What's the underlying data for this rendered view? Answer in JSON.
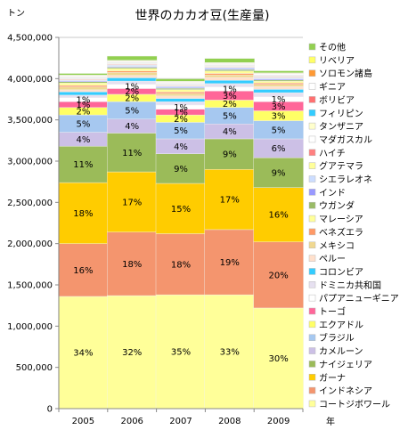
{
  "chart_data": {
    "type": "bar",
    "stacked": true,
    "title": "世界のカカオ豆(生産量)",
    "ylabel": "トン",
    "xlabel": "年",
    "ylim": [
      0,
      4500000
    ],
    "y_ticks": [
      0,
      500000,
      1000000,
      1500000,
      2000000,
      2500000,
      3000000,
      3500000,
      4000000,
      4500000
    ],
    "y_tick_labels": [
      "0",
      "500,000",
      "1,000,000",
      "1,500,000",
      "2,000,000",
      "2,500,000",
      "3,000,000",
      "3,500,000",
      "4,000,000",
      "4,500,000"
    ],
    "grid": true,
    "legend_position": "right",
    "categories": [
      "2005",
      "2006",
      "2007",
      "2008",
      "2009"
    ],
    "series": [
      {
        "name": "コートジボワール",
        "color": "#ffff99",
        "values": [
          1360000,
          1370000,
          1380000,
          1380000,
          1220000
        ],
        "labels": [
          "34%",
          "32%",
          "35%",
          "33%",
          "30%"
        ]
      },
      {
        "name": "インドネシア",
        "color": "#f4956e",
        "values": [
          640000,
          770000,
          740000,
          790000,
          800000
        ],
        "labels": [
          "16%",
          "18%",
          "18%",
          "19%",
          "20%"
        ]
      },
      {
        "name": "ガーナ",
        "color": "#ffcc00",
        "values": [
          740000,
          730000,
          610000,
          730000,
          660000
        ],
        "labels": [
          "18%",
          "17%",
          "15%",
          "17%",
          "16%"
        ]
      },
      {
        "name": "ナイジェリア",
        "color": "#9bbb59",
        "values": [
          440000,
          470000,
          360000,
          370000,
          360000
        ],
        "labels": [
          "11%",
          "11%",
          "9%",
          "9%",
          "9%"
        ]
      },
      {
        "name": "カメルーン",
        "color": "#ccc0e6",
        "values": [
          170000,
          170000,
          180000,
          180000,
          230000
        ],
        "labels": [
          "4%",
          "4%",
          "4%",
          "4%",
          "6%"
        ]
      },
      {
        "name": "ブラジル",
        "color": "#a6c8f0",
        "values": [
          210000,
          210000,
          200000,
          200000,
          220000
        ],
        "labels": [
          "5%",
          "5%",
          "5%",
          "5%",
          "5%"
        ]
      },
      {
        "name": "エクアドル",
        "color": "#ffff66",
        "values": [
          90000,
          90000,
          90000,
          90000,
          120000
        ],
        "labels": [
          "2%",
          "2%",
          "2%",
          "2%",
          "3%"
        ]
      },
      {
        "name": "トーゴ",
        "color": "#ff6699",
        "values": [
          70000,
          70000,
          70000,
          110000,
          110000
        ],
        "labels": [
          "1%",
          "2%",
          "1%",
          "3%",
          "3%"
        ]
      },
      {
        "name": "パプアニューギニア",
        "color": "#ffffff",
        "values": [
          50000,
          50000,
          50000,
          50000,
          60000
        ],
        "labels": [
          "1%",
          "1%",
          "1%",
          "1%",
          "1%"
        ]
      },
      {
        "name": "ドミニカ共和国",
        "color": "#e6e0f0",
        "values": [
          30000,
          40000,
          40000,
          40000,
          50000
        ],
        "labels": [
          "",
          "",
          "",
          "",
          ""
        ]
      },
      {
        "name": "コロンビア",
        "color": "#33ccff",
        "values": [
          40000,
          40000,
          40000,
          40000,
          40000
        ],
        "labels": [
          "",
          "",
          "",
          "",
          ""
        ]
      },
      {
        "name": "ペルー",
        "color": "#ffe0cc",
        "values": [
          25000,
          30000,
          30000,
          35000,
          35000
        ],
        "labels": [
          "",
          "",
          "",
          "",
          ""
        ]
      },
      {
        "name": "メキシコ",
        "color": "#f0d890",
        "values": [
          35000,
          35000,
          30000,
          30000,
          25000
        ],
        "labels": [
          "",
          "",
          "",
          "",
          ""
        ]
      },
      {
        "name": "ベネズエラ",
        "color": "#ff9966",
        "values": [
          18000,
          18000,
          18000,
          18000,
          18000
        ],
        "labels": [
          "",
          "",
          "",
          "",
          ""
        ]
      },
      {
        "name": "マレーシア",
        "color": "#ffff99",
        "values": [
          30000,
          30000,
          30000,
          30000,
          20000
        ],
        "labels": [
          "",
          "",
          "",
          "",
          ""
        ]
      },
      {
        "name": "ウガンダ",
        "color": "#99bb66",
        "values": [
          15000,
          15000,
          15000,
          15000,
          15000
        ],
        "labels": [
          "",
          "",
          "",
          "",
          ""
        ]
      },
      {
        "name": "インド",
        "color": "#9999ff",
        "values": [
          10000,
          10000,
          10000,
          12000,
          12000
        ],
        "labels": [
          "",
          "",
          "",
          "",
          ""
        ]
      },
      {
        "name": "シエラレオネ",
        "color": "#ccddff",
        "values": [
          10000,
          15000,
          15000,
          15000,
          15000
        ],
        "labels": [
          "",
          "",
          "",
          "",
          ""
        ]
      },
      {
        "name": "グアテマラ",
        "color": "#ffff99",
        "values": [
          5000,
          5000,
          5000,
          5000,
          5000
        ],
        "labels": [
          "",
          "",
          "",
          "",
          ""
        ]
      },
      {
        "name": "ハイチ",
        "color": "#ff8080",
        "values": [
          8000,
          8000,
          8000,
          8000,
          8000
        ],
        "labels": [
          "",
          "",
          "",
          "",
          ""
        ]
      },
      {
        "name": "マダガスカル",
        "color": "#ffffff",
        "values": [
          6000,
          6000,
          6000,
          6000,
          6000
        ],
        "labels": [
          "",
          "",
          "",
          "",
          ""
        ]
      },
      {
        "name": "タンザニア",
        "color": "#ffffcc",
        "values": [
          6000,
          6000,
          6000,
          6000,
          6000
        ],
        "labels": [
          "",
          "",
          "",
          "",
          ""
        ]
      },
      {
        "name": "フィリピン",
        "color": "#33ccff",
        "values": [
          5000,
          5000,
          5000,
          5000,
          5000
        ],
        "labels": [
          "",
          "",
          "",
          "",
          ""
        ]
      },
      {
        "name": "ボリビア",
        "color": "#ff7070",
        "values": [
          5000,
          5000,
          5000,
          5000,
          5000
        ],
        "labels": [
          "",
          "",
          "",
          "",
          ""
        ]
      },
      {
        "name": "ギニア",
        "color": "#ffffff",
        "values": [
          15000,
          15000,
          15000,
          15000,
          15000
        ],
        "labels": [
          "",
          "",
          "",
          "",
          ""
        ]
      },
      {
        "name": "ソロモン諸島",
        "color": "#ff9933",
        "values": [
          5000,
          5000,
          5000,
          5000,
          5000
        ],
        "labels": [
          "",
          "",
          "",
          "",
          ""
        ]
      },
      {
        "name": "リベリア",
        "color": "#ffff66",
        "values": [
          5000,
          5000,
          5000,
          5000,
          5000
        ],
        "labels": [
          "",
          "",
          "",
          "",
          ""
        ]
      },
      {
        "name": "その他",
        "color": "#92d050",
        "values": [
          20000,
          50000,
          30000,
          50000,
          25000
        ],
        "labels": [
          "",
          "",
          "",
          "",
          ""
        ]
      }
    ]
  }
}
